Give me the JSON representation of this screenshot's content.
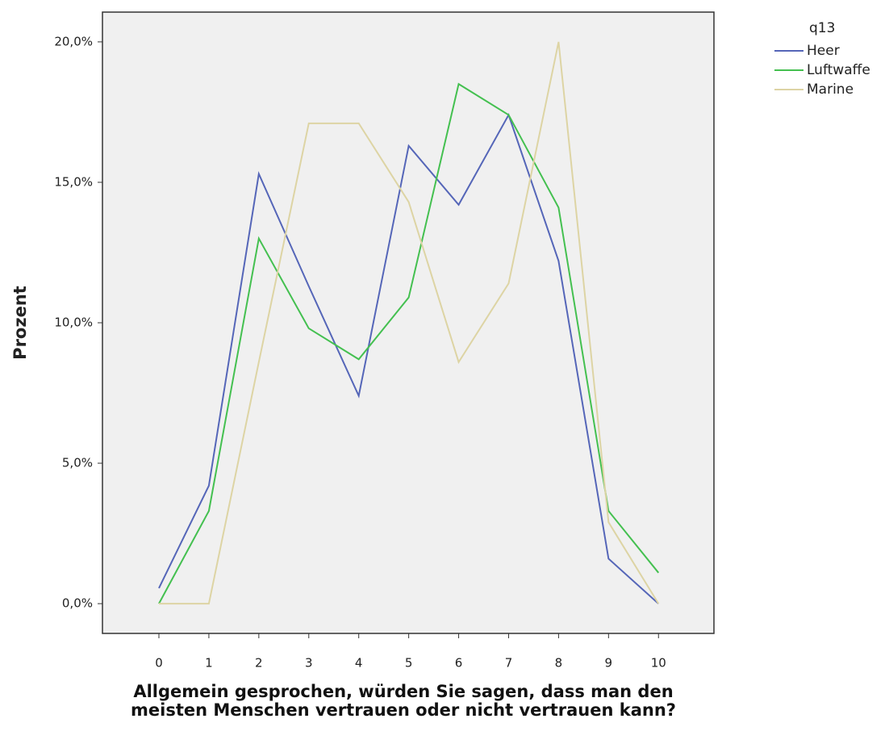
{
  "chart_data": {
    "type": "line",
    "x_label": "Allgemein gesprochen, würden Sie sagen, dass man den meisten Menschen vertrauen oder nicht vertrauen kann?",
    "y_label": "Prozent",
    "legend_title": "q13",
    "x": [
      0,
      1,
      2,
      3,
      4,
      5,
      6,
      7,
      8,
      9,
      10
    ],
    "series": [
      {
        "name": "Heer",
        "color": "#5566b8",
        "values": [
          0.55,
          4.2,
          15.3,
          11.3,
          7.4,
          16.3,
          14.2,
          17.4,
          12.2,
          1.6,
          0
        ]
      },
      {
        "name": "Luftwaffe",
        "color": "#44c050",
        "values": [
          0,
          3.3,
          13.0,
          9.8,
          8.7,
          10.9,
          18.5,
          17.4,
          14.1,
          3.3,
          1.1
        ]
      },
      {
        "name": "Marine",
        "color": "#ddd4a4",
        "values": [
          0,
          0,
          8.6,
          17.1,
          17.1,
          14.3,
          8.6,
          11.4,
          20.0,
          2.9,
          0
        ]
      }
    ],
    "xlim": [
      -1.13,
      11.11
    ],
    "xticks": [
      0,
      1,
      2,
      3,
      4,
      5,
      6,
      7,
      8,
      9,
      10
    ],
    "ylim": [
      -1.06,
      21.06
    ],
    "yticks": [
      {
        "value": 0,
        "label": "0,0%"
      },
      {
        "value": 5,
        "label": "5,0%"
      },
      {
        "value": 10,
        "label": "10,0%"
      },
      {
        "value": 15,
        "label": "15,0%"
      },
      {
        "value": 20,
        "label": "20,0%"
      }
    ],
    "legend_position": "right"
  }
}
